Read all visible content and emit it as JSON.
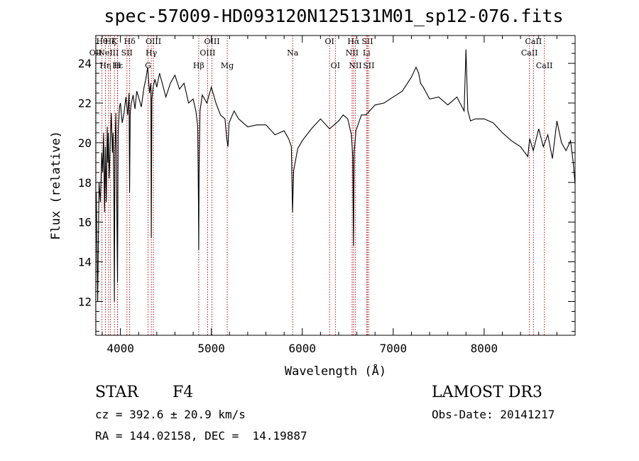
{
  "chart_data": {
    "type": "line",
    "title": "spec-57009-HD093120N125131M01_sp12-076.fits",
    "xlabel": "Wavelength (Å)",
    "ylabel": "Flux (relative)",
    "xlim": [
      3730,
      9000
    ],
    "ylim": [
      10.3,
      25.4
    ],
    "xticks": [
      4000,
      5000,
      6000,
      7000,
      8000
    ],
    "yticks": [
      12,
      14,
      16,
      18,
      20,
      22,
      24
    ],
    "grid": false,
    "series": [
      {
        "x": [
          3735,
          3750,
          3765,
          3780,
          3795,
          3805,
          3815,
          3825,
          3835,
          3845,
          3855,
          3862,
          3868,
          3875,
          3882,
          3890,
          3900,
          3912,
          3920,
          3928,
          3934,
          3940,
          3950,
          3960,
          3968,
          3975,
          3990,
          4000,
          4020,
          4040,
          4060,
          4080,
          4095,
          4101,
          4108,
          4120,
          4140,
          4160,
          4180,
          4200,
          4230,
          4260,
          4280,
          4300,
          4320,
          4335,
          4340,
          4346,
          4360,
          4380,
          4400,
          4430,
          4460,
          4500,
          4550,
          4600,
          4650,
          4700,
          4750,
          4800,
          4830,
          4850,
          4858,
          4861,
          4865,
          4875,
          4900,
          4950,
          5000,
          5050,
          5100,
          5150,
          5170,
          5183,
          5195,
          5250,
          5300,
          5400,
          5500,
          5600,
          5700,
          5800,
          5850,
          5880,
          5893,
          5905,
          5950,
          6000,
          6100,
          6200,
          6300,
          6400,
          6450,
          6500,
          6540,
          6555,
          6563,
          6570,
          6590,
          6650,
          6700,
          6800,
          6900,
          7000,
          7100,
          7200,
          7250,
          7280,
          7300,
          7330,
          7400,
          7500,
          7600,
          7700,
          7780,
          7800,
          7820,
          7850,
          7900,
          8000,
          8100,
          8200,
          8300,
          8400,
          8480,
          8500,
          8540,
          8600,
          8650,
          8700,
          8750,
          8800,
          8850,
          8900,
          8950,
          8980,
          9000
        ],
        "y": [
          17.5,
          12.0,
          18.0,
          17.0,
          19.5,
          18.5,
          20.5,
          16.5,
          19.8,
          17.0,
          20.8,
          19.0,
          20.5,
          18.2,
          19.0,
          20.2,
          21.5,
          19.5,
          20.5,
          17.5,
          12.0,
          19.5,
          21.5,
          17.0,
          13.0,
          20.5,
          21.8,
          22.0,
          21.0,
          21.5,
          22.3,
          21.4,
          22.5,
          17.5,
          21.5,
          22.0,
          22.4,
          21.7,
          22.6,
          22.3,
          21.8,
          22.8,
          23.2,
          23.8,
          22.5,
          23.0,
          15.2,
          22.2,
          22.8,
          23.2,
          22.8,
          23.5,
          23.0,
          22.3,
          23.0,
          23.4,
          22.7,
          23.0,
          22.0,
          22.2,
          21.6,
          20.8,
          17.0,
          14.6,
          18.5,
          21.6,
          22.4,
          22.0,
          22.8,
          22.0,
          21.4,
          21.2,
          20.2,
          19.8,
          21.0,
          21.6,
          21.2,
          20.8,
          20.9,
          20.9,
          20.4,
          20.6,
          20.2,
          19.8,
          16.5,
          18.6,
          19.7,
          20.1,
          20.7,
          21.2,
          20.7,
          21.1,
          21.4,
          21.2,
          20.4,
          19.3,
          14.8,
          19.5,
          20.6,
          21.4,
          21.4,
          21.9,
          22.0,
          22.3,
          22.6,
          23.3,
          23.8,
          23.5,
          23.0,
          22.8,
          22.2,
          22.3,
          21.9,
          22.3,
          21.6,
          24.7,
          21.6,
          21.1,
          21.2,
          21.2,
          21.0,
          20.5,
          20.1,
          19.8,
          19.3,
          20.2,
          19.6,
          20.7,
          19.8,
          20.4,
          19.2,
          21.1,
          20.0,
          19.6,
          20.1,
          19.0,
          17.9
        ]
      }
    ],
    "lines": [
      {
        "wl": 3727,
        "label": "OII",
        "row": 2
      },
      {
        "wl": 3797,
        "label": "Hθ",
        "row": 1
      },
      {
        "wl": 3835,
        "label": "Hη",
        "row": 3
      },
      {
        "wl": 3869,
        "label": "NeIII",
        "row": 2
      },
      {
        "wl": 3889,
        "label": "Hζ",
        "row": 1
      },
      {
        "wl": 3934,
        "label": "K",
        "row": 1
      },
      {
        "wl": 3968,
        "label": "H",
        "row": 3
      },
      {
        "wl": 3970,
        "label": "Hε",
        "row": 3
      },
      {
        "wl": 4072,
        "label": "SII",
        "row": 2
      },
      {
        "wl": 4102,
        "label": "Hδ",
        "row": 1
      },
      {
        "wl": 4304,
        "label": "G",
        "row": 3
      },
      {
        "wl": 4340,
        "label": "Hγ",
        "row": 2
      },
      {
        "wl": 4363,
        "label": "OIII",
        "row": 1
      },
      {
        "wl": 4861,
        "label": "Hβ",
        "row": 3
      },
      {
        "wl": 4959,
        "label": "OIII",
        "row": 2
      },
      {
        "wl": 5007,
        "label": "OIII",
        "row": 1
      },
      {
        "wl": 5175,
        "label": "Mg",
        "row": 3
      },
      {
        "wl": 5894,
        "label": "Na",
        "row": 2
      },
      {
        "wl": 6300,
        "label": "OI",
        "row": 1
      },
      {
        "wl": 6364,
        "label": "OI",
        "row": 3
      },
      {
        "wl": 6548,
        "label": "NII",
        "row": 2
      },
      {
        "wl": 6563,
        "label": "Hα",
        "row": 1
      },
      {
        "wl": 6583,
        "label": "NII",
        "row": 3
      },
      {
        "wl": 6707,
        "label": "Li",
        "row": 2
      },
      {
        "wl": 6716,
        "label": "SII",
        "row": 1
      },
      {
        "wl": 6731,
        "label": "SII",
        "row": 3
      },
      {
        "wl": 8498,
        "label": "CaII",
        "row": 2
      },
      {
        "wl": 8542,
        "label": "CaII",
        "row": 1
      },
      {
        "wl": 8662,
        "label": "CaII",
        "row": 3
      }
    ]
  },
  "info": {
    "class_label": "STAR",
    "subclass": "F4",
    "survey": "LAMOST DR3",
    "cz": "cz = 392.6 ± 20.9 km/s",
    "obs_date": "Obs-Date: 20141217",
    "coords": "RA = 144.02158, DEC =  14.19887"
  },
  "colors": {
    "line_marker": "#b00000",
    "spectrum": "#000000"
  }
}
